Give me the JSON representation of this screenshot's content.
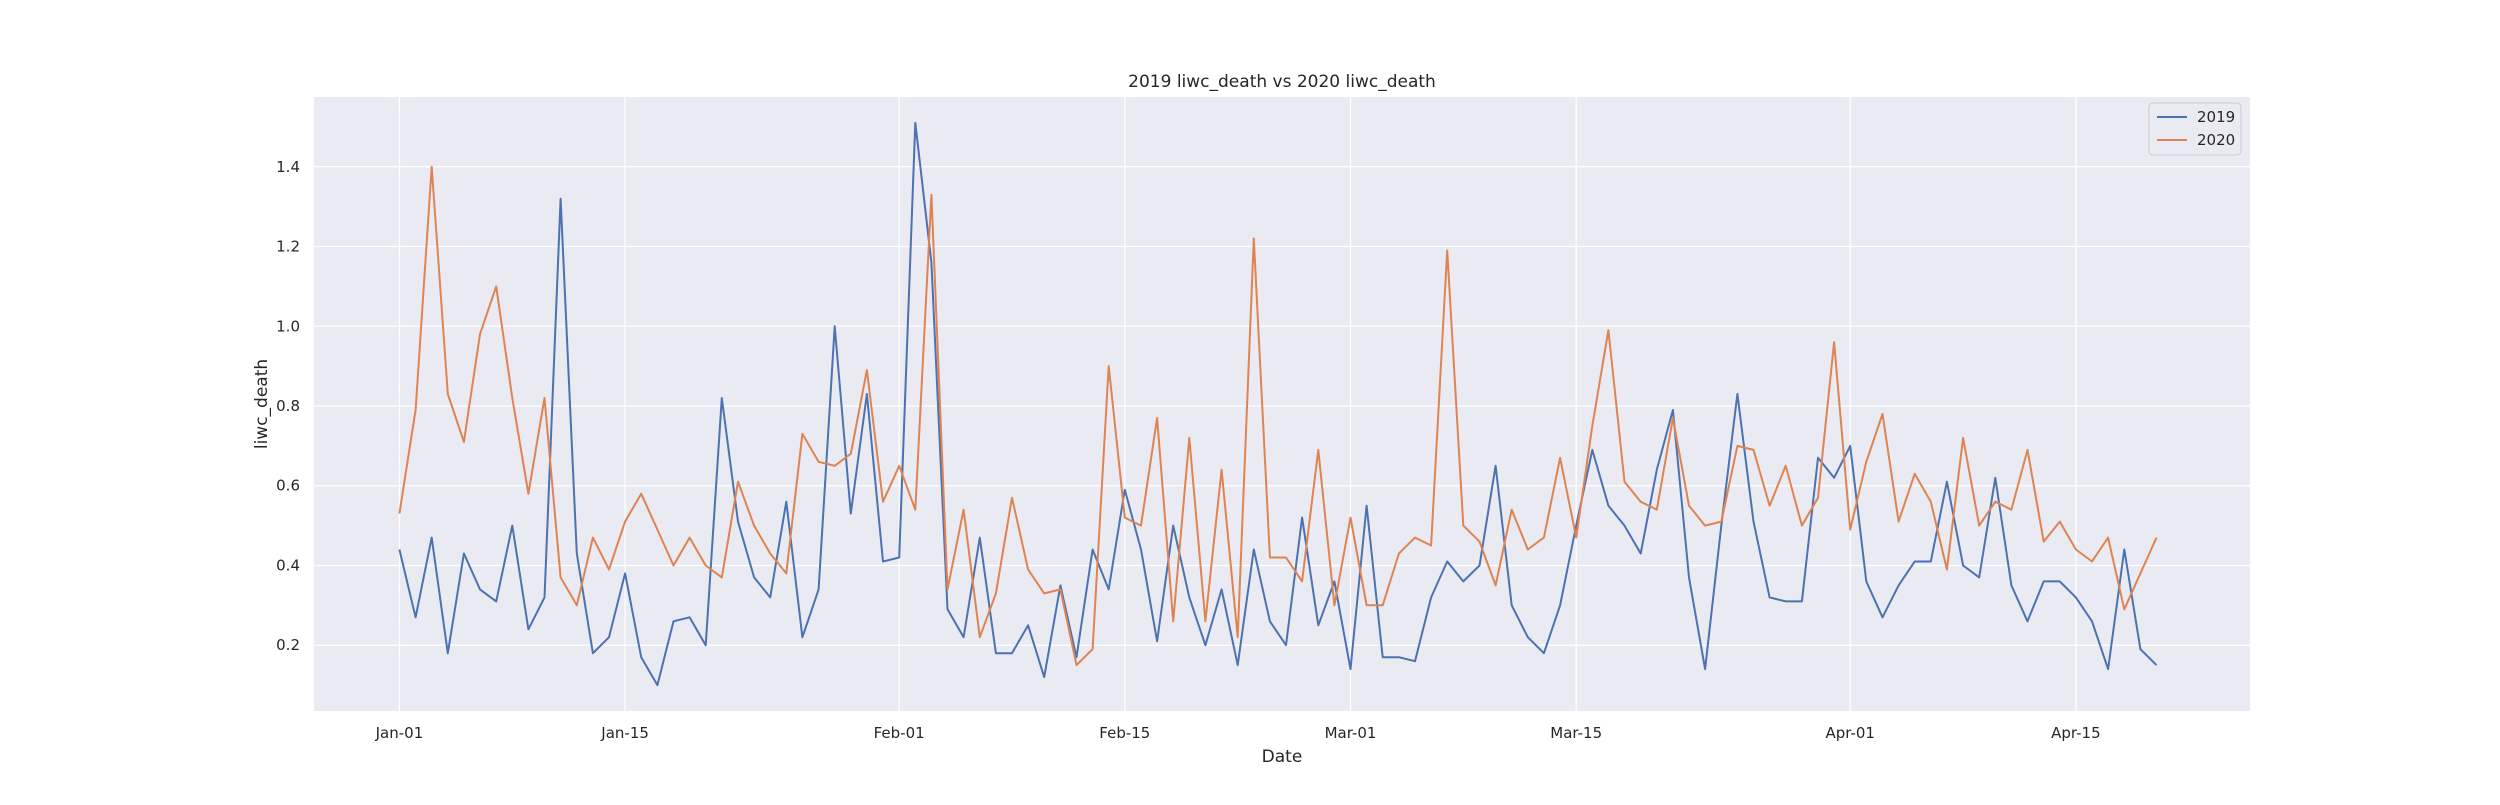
{
  "chart_data": {
    "type": "line",
    "title": "2019 liwc_death vs 2020 liwc_death",
    "xlabel": "Date",
    "ylabel": "liwc_death",
    "ylim": [
      0.035,
      1.575
    ],
    "yticks": [
      0.2,
      0.4,
      0.6,
      0.8,
      1.0,
      1.2,
      1.4
    ],
    "ytick_labels": [
      "0.2",
      "0.4",
      "0.6",
      "0.8",
      "1.0",
      "1.2",
      "1.4"
    ],
    "xticks": [
      0,
      14,
      31,
      45,
      59,
      73,
      90,
      104
    ],
    "xtick_labels": [
      "Jan-01",
      "Jan-15",
      "Feb-01",
      "Feb-15",
      "Mar-01",
      "Mar-15",
      "Apr-01",
      "Apr-15"
    ],
    "xlim": [
      -5.3,
      114.8
    ],
    "x_start_label": "Jan-01",
    "grid": true,
    "legend_position": "top-right",
    "colors": {
      "2019": "#4c72b0",
      "2020": "#dd8452",
      "background": "#eaeaf2",
      "grid": "#ffffff"
    },
    "series": [
      {
        "name": "2019",
        "values": [
          0.44,
          0.27,
          0.47,
          0.18,
          0.43,
          0.34,
          0.31,
          0.5,
          0.24,
          0.32,
          1.32,
          0.43,
          0.18,
          0.22,
          0.38,
          0.17,
          0.1,
          0.26,
          0.27,
          0.2,
          0.82,
          0.51,
          0.37,
          0.32,
          0.56,
          0.22,
          0.34,
          1.0,
          0.53,
          0.83,
          0.41,
          0.42,
          1.51,
          1.16,
          0.29,
          0.22,
          0.47,
          0.18,
          0.18,
          0.25,
          0.12,
          0.35,
          0.17,
          0.44,
          0.34,
          0.59,
          0.44,
          0.21,
          0.5,
          0.32,
          0.2,
          0.34,
          0.15,
          0.44,
          0.26,
          0.2,
          0.52,
          0.25,
          0.36,
          0.14,
          0.55,
          0.17,
          0.17,
          0.16,
          0.32,
          0.41,
          0.36,
          0.4,
          0.65,
          0.3,
          0.22,
          0.18,
          0.3,
          0.5,
          0.69,
          0.55,
          0.5,
          0.43,
          0.64,
          0.79,
          0.37,
          0.14,
          0.5,
          0.83,
          0.51,
          0.32,
          0.31,
          0.31,
          0.67,
          0.62,
          0.7,
          0.36,
          0.27,
          0.35,
          0.41,
          0.41,
          0.61,
          0.4,
          0.37,
          0.62,
          0.35,
          0.26,
          0.36,
          0.36,
          0.32,
          0.26,
          0.14,
          0.44,
          0.19,
          0.15
        ]
      },
      {
        "name": "2020",
        "values": [
          0.53,
          0.79,
          1.4,
          0.83,
          0.71,
          0.98,
          1.1,
          0.82,
          0.58,
          0.82,
          0.37,
          0.3,
          0.47,
          0.39,
          0.51,
          0.58,
          0.49,
          0.4,
          0.47,
          0.4,
          0.37,
          0.61,
          0.5,
          0.43,
          0.38,
          0.73,
          0.66,
          0.65,
          0.68,
          0.89,
          0.56,
          0.65,
          0.54,
          1.33,
          0.34,
          0.54,
          0.22,
          0.33,
          0.57,
          0.39,
          0.33,
          0.34,
          0.15,
          0.19,
          0.9,
          0.52,
          0.5,
          0.77,
          0.26,
          0.72,
          0.26,
          0.64,
          0.22,
          1.22,
          0.42,
          0.42,
          0.36,
          0.69,
          0.3,
          0.52,
          0.3,
          0.3,
          0.43,
          0.47,
          0.45,
          1.19,
          0.5,
          0.46,
          0.35,
          0.54,
          0.44,
          0.47,
          0.67,
          0.47,
          0.75,
          0.99,
          0.61,
          0.56,
          0.54,
          0.77,
          0.55,
          0.5,
          0.51,
          0.7,
          0.69,
          0.55,
          0.65,
          0.5,
          0.57,
          0.96,
          0.49,
          0.66,
          0.78,
          0.51,
          0.63,
          0.56,
          0.39,
          0.72,
          0.5,
          0.56,
          0.54,
          0.69,
          0.46,
          0.51,
          0.44,
          0.41,
          0.47,
          0.29,
          0.38,
          0.47
        ]
      }
    ]
  }
}
